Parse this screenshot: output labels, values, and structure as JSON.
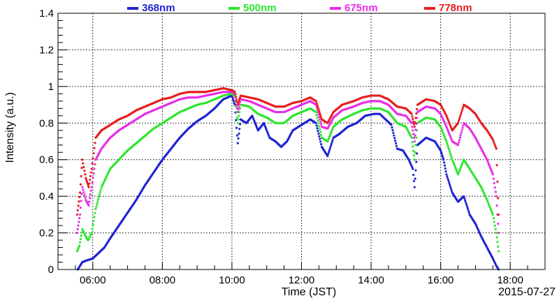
{
  "chart_data": {
    "type": "scatter",
    "date": "2015-07-27",
    "xlabel": "Time (JST)",
    "ylabel": "Intensity (a.u.)",
    "xlim": [
      "05:00",
      "19:00"
    ],
    "ylim": [
      0,
      1.4
    ],
    "x_ticks": [
      "06:00",
      "08:00",
      "10:00",
      "12:00",
      "14:00",
      "16:00",
      "18:00"
    ],
    "y_ticks": [
      "0",
      "0.2",
      "0.4",
      "0.6",
      "0.8",
      "1",
      "1.2",
      "1.4"
    ],
    "grid": true,
    "legend_position": "top",
    "series": [
      {
        "name": "368nm",
        "color": "#1f25d1",
        "points": [
          [
            "05:34",
            0.0
          ],
          [
            "05:38",
            0.02
          ],
          [
            "05:42",
            0.04
          ],
          [
            "05:50",
            0.05
          ],
          [
            "06:00",
            0.06
          ],
          [
            "06:10",
            0.09
          ],
          [
            "06:20",
            0.12
          ],
          [
            "06:30",
            0.17
          ],
          [
            "06:45",
            0.24
          ],
          [
            "07:00",
            0.31
          ],
          [
            "07:15",
            0.38
          ],
          [
            "07:30",
            0.46
          ],
          [
            "07:45",
            0.53
          ],
          [
            "08:00",
            0.6
          ],
          [
            "08:15",
            0.66
          ],
          [
            "08:30",
            0.72
          ],
          [
            "08:45",
            0.77
          ],
          [
            "09:00",
            0.81
          ],
          [
            "09:15",
            0.84
          ],
          [
            "09:30",
            0.88
          ],
          [
            "09:45",
            0.93
          ],
          [
            "10:00",
            0.95
          ],
          [
            "10:05",
            0.9
          ],
          [
            "10:10",
            0.69
          ],
          [
            "10:15",
            0.82
          ],
          [
            "10:25",
            0.8
          ],
          [
            "10:35",
            0.84
          ],
          [
            "10:45",
            0.76
          ],
          [
            "10:55",
            0.8
          ],
          [
            "11:05",
            0.72
          ],
          [
            "11:15",
            0.7
          ],
          [
            "11:25",
            0.67
          ],
          [
            "11:35",
            0.7
          ],
          [
            "11:45",
            0.76
          ],
          [
            "11:55",
            0.78
          ],
          [
            "12:05",
            0.8
          ],
          [
            "12:15",
            0.82
          ],
          [
            "12:25",
            0.8
          ],
          [
            "12:35",
            0.67
          ],
          [
            "12:45",
            0.62
          ],
          [
            "12:55",
            0.72
          ],
          [
            "13:05",
            0.74
          ],
          [
            "13:20",
            0.78
          ],
          [
            "13:35",
            0.8
          ],
          [
            "13:50",
            0.84
          ],
          [
            "14:05",
            0.85
          ],
          [
            "14:15",
            0.85
          ],
          [
            "14:25",
            0.82
          ],
          [
            "14:35",
            0.79
          ],
          [
            "14:45",
            0.66
          ],
          [
            "14:55",
            0.65
          ],
          [
            "15:05",
            0.6
          ],
          [
            "15:12",
            0.55
          ],
          [
            "15:15",
            0.45
          ],
          [
            "15:20",
            0.68
          ],
          [
            "15:35",
            0.72
          ],
          [
            "15:50",
            0.7
          ],
          [
            "16:00",
            0.65
          ],
          [
            "16:05",
            0.6
          ],
          [
            "16:10",
            0.52
          ],
          [
            "16:20",
            0.42
          ],
          [
            "16:30",
            0.37
          ],
          [
            "16:40",
            0.4
          ],
          [
            "16:50",
            0.3
          ],
          [
            "17:00",
            0.25
          ],
          [
            "17:10",
            0.18
          ],
          [
            "17:20",
            0.12
          ],
          [
            "17:30",
            0.06
          ],
          [
            "17:36",
            0.02
          ],
          [
            "17:40",
            0.0
          ]
        ]
      },
      {
        "name": "500nm",
        "color": "#2fe62f",
        "points": [
          [
            "05:33",
            0.1
          ],
          [
            "05:37",
            0.13
          ],
          [
            "05:42",
            0.22
          ],
          [
            "05:48",
            0.18
          ],
          [
            "05:52",
            0.16
          ],
          [
            "05:58",
            0.2
          ],
          [
            "06:05",
            0.33
          ],
          [
            "06:15",
            0.45
          ],
          [
            "06:30",
            0.55
          ],
          [
            "06:45",
            0.6
          ],
          [
            "07:00",
            0.65
          ],
          [
            "07:15",
            0.69
          ],
          [
            "07:30",
            0.73
          ],
          [
            "07:45",
            0.77
          ],
          [
            "08:00",
            0.8
          ],
          [
            "08:15",
            0.83
          ],
          [
            "08:30",
            0.86
          ],
          [
            "08:45",
            0.88
          ],
          [
            "09:00",
            0.9
          ],
          [
            "09:15",
            0.91
          ],
          [
            "09:30",
            0.93
          ],
          [
            "09:45",
            0.95
          ],
          [
            "10:00",
            0.96
          ],
          [
            "10:05",
            0.95
          ],
          [
            "10:10",
            0.8
          ],
          [
            "10:15",
            0.9
          ],
          [
            "10:30",
            0.89
          ],
          [
            "10:45",
            0.85
          ],
          [
            "11:00",
            0.83
          ],
          [
            "11:15",
            0.8
          ],
          [
            "11:30",
            0.8
          ],
          [
            "11:45",
            0.84
          ],
          [
            "12:00",
            0.86
          ],
          [
            "12:15",
            0.88
          ],
          [
            "12:25",
            0.86
          ],
          [
            "12:35",
            0.72
          ],
          [
            "12:45",
            0.7
          ],
          [
            "12:55",
            0.78
          ],
          [
            "13:10",
            0.82
          ],
          [
            "13:30",
            0.85
          ],
          [
            "13:45",
            0.87
          ],
          [
            "14:00",
            0.88
          ],
          [
            "14:15",
            0.88
          ],
          [
            "14:30",
            0.86
          ],
          [
            "14:45",
            0.8
          ],
          [
            "15:00",
            0.78
          ],
          [
            "15:10",
            0.72
          ],
          [
            "15:15",
            0.6
          ],
          [
            "15:20",
            0.8
          ],
          [
            "15:35",
            0.83
          ],
          [
            "15:50",
            0.82
          ],
          [
            "16:00",
            0.78
          ],
          [
            "16:10",
            0.7
          ],
          [
            "16:20",
            0.6
          ],
          [
            "16:30",
            0.52
          ],
          [
            "16:40",
            0.6
          ],
          [
            "16:50",
            0.55
          ],
          [
            "17:00",
            0.5
          ],
          [
            "17:10",
            0.45
          ],
          [
            "17:20",
            0.38
          ],
          [
            "17:30",
            0.3
          ],
          [
            "17:36",
            0.2
          ],
          [
            "17:40",
            0.1
          ]
        ]
      },
      {
        "name": "675nm",
        "color": "#e62fe6",
        "points": [
          [
            "05:33",
            0.2
          ],
          [
            "05:38",
            0.3
          ],
          [
            "05:42",
            0.45
          ],
          [
            "05:48",
            0.38
          ],
          [
            "05:53",
            0.35
          ],
          [
            "05:58",
            0.45
          ],
          [
            "06:05",
            0.6
          ],
          [
            "06:15",
            0.66
          ],
          [
            "06:30",
            0.72
          ],
          [
            "06:45",
            0.76
          ],
          [
            "07:00",
            0.79
          ],
          [
            "07:15",
            0.82
          ],
          [
            "07:30",
            0.85
          ],
          [
            "07:45",
            0.87
          ],
          [
            "08:00",
            0.89
          ],
          [
            "08:15",
            0.91
          ],
          [
            "08:30",
            0.93
          ],
          [
            "08:45",
            0.94
          ],
          [
            "09:00",
            0.94
          ],
          [
            "09:15",
            0.95
          ],
          [
            "09:30",
            0.96
          ],
          [
            "09:45",
            0.97
          ],
          [
            "10:00",
            0.97
          ],
          [
            "10:05",
            0.96
          ],
          [
            "10:10",
            0.86
          ],
          [
            "10:15",
            0.93
          ],
          [
            "10:30",
            0.92
          ],
          [
            "10:45",
            0.9
          ],
          [
            "11:00",
            0.88
          ],
          [
            "11:15",
            0.86
          ],
          [
            "11:30",
            0.86
          ],
          [
            "11:45",
            0.88
          ],
          [
            "12:00",
            0.9
          ],
          [
            "12:15",
            0.92
          ],
          [
            "12:25",
            0.9
          ],
          [
            "12:35",
            0.78
          ],
          [
            "12:45",
            0.77
          ],
          [
            "12:55",
            0.83
          ],
          [
            "13:10",
            0.87
          ],
          [
            "13:30",
            0.89
          ],
          [
            "13:45",
            0.91
          ],
          [
            "14:00",
            0.92
          ],
          [
            "14:15",
            0.92
          ],
          [
            "14:30",
            0.9
          ],
          [
            "14:45",
            0.85
          ],
          [
            "15:00",
            0.84
          ],
          [
            "15:10",
            0.8
          ],
          [
            "15:15",
            0.7
          ],
          [
            "15:20",
            0.86
          ],
          [
            "15:35",
            0.89
          ],
          [
            "15:50",
            0.88
          ],
          [
            "16:00",
            0.85
          ],
          [
            "16:10",
            0.78
          ],
          [
            "16:20",
            0.7
          ],
          [
            "16:30",
            0.68
          ],
          [
            "16:40",
            0.8
          ],
          [
            "16:50",
            0.77
          ],
          [
            "17:00",
            0.72
          ],
          [
            "17:10",
            0.66
          ],
          [
            "17:20",
            0.6
          ],
          [
            "17:30",
            0.52
          ],
          [
            "17:36",
            0.4
          ],
          [
            "17:40",
            0.2
          ]
        ]
      },
      {
        "name": "778nm",
        "color": "#e61f1f",
        "points": [
          [
            "05:33",
            0.3
          ],
          [
            "05:38",
            0.42
          ],
          [
            "05:42",
            0.6
          ],
          [
            "05:48",
            0.5
          ],
          [
            "05:53",
            0.45
          ],
          [
            "05:58",
            0.55
          ],
          [
            "06:05",
            0.72
          ],
          [
            "06:15",
            0.76
          ],
          [
            "06:30",
            0.79
          ],
          [
            "06:45",
            0.82
          ],
          [
            "07:00",
            0.84
          ],
          [
            "07:15",
            0.87
          ],
          [
            "07:30",
            0.89
          ],
          [
            "07:45",
            0.91
          ],
          [
            "08:00",
            0.93
          ],
          [
            "08:15",
            0.94
          ],
          [
            "08:30",
            0.96
          ],
          [
            "08:45",
            0.97
          ],
          [
            "09:00",
            0.97
          ],
          [
            "09:15",
            0.97
          ],
          [
            "09:30",
            0.98
          ],
          [
            "09:45",
            0.99
          ],
          [
            "10:00",
            0.98
          ],
          [
            "10:05",
            0.97
          ],
          [
            "10:10",
            0.9
          ],
          [
            "10:15",
            0.95
          ],
          [
            "10:30",
            0.94
          ],
          [
            "10:45",
            0.93
          ],
          [
            "11:00",
            0.91
          ],
          [
            "11:15",
            0.89
          ],
          [
            "11:30",
            0.89
          ],
          [
            "11:45",
            0.91
          ],
          [
            "12:00",
            0.92
          ],
          [
            "12:15",
            0.94
          ],
          [
            "12:25",
            0.92
          ],
          [
            "12:35",
            0.82
          ],
          [
            "12:45",
            0.8
          ],
          [
            "12:55",
            0.86
          ],
          [
            "13:10",
            0.9
          ],
          [
            "13:30",
            0.92
          ],
          [
            "13:45",
            0.94
          ],
          [
            "14:00",
            0.95
          ],
          [
            "14:15",
            0.95
          ],
          [
            "14:30",
            0.93
          ],
          [
            "14:45",
            0.89
          ],
          [
            "15:00",
            0.88
          ],
          [
            "15:10",
            0.85
          ],
          [
            "15:15",
            0.78
          ],
          [
            "15:20",
            0.9
          ],
          [
            "15:35",
            0.93
          ],
          [
            "15:50",
            0.92
          ],
          [
            "16:00",
            0.9
          ],
          [
            "16:10",
            0.84
          ],
          [
            "16:20",
            0.76
          ],
          [
            "16:30",
            0.8
          ],
          [
            "16:40",
            0.9
          ],
          [
            "16:50",
            0.88
          ],
          [
            "17:00",
            0.85
          ],
          [
            "17:10",
            0.8
          ],
          [
            "17:20",
            0.76
          ],
          [
            "17:30",
            0.71
          ],
          [
            "17:36",
            0.66
          ],
          [
            "17:40",
            0.3
          ]
        ]
      }
    ]
  }
}
